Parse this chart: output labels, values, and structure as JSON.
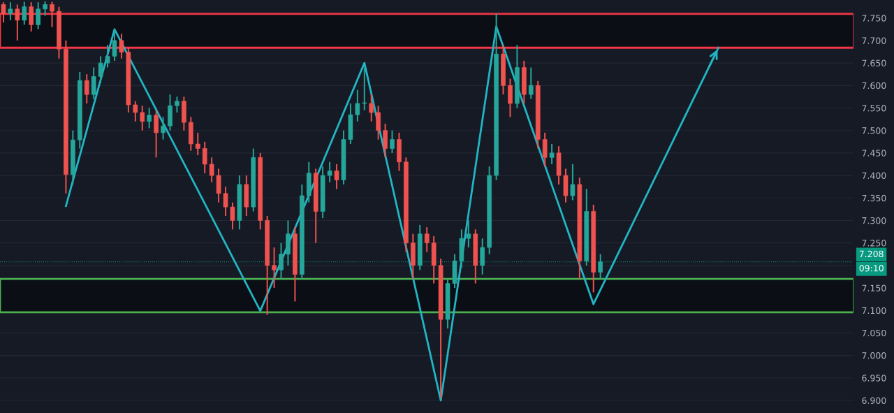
{
  "chart_data": {
    "type": "candlestick",
    "categories": [
      null,
      null,
      null,
      null,
      null,
      null,
      null,
      null,
      null,
      null,
      null,
      null,
      null,
      null,
      null,
      null,
      null,
      null,
      null,
      null,
      null,
      null,
      null,
      null,
      null,
      null,
      null,
      null,
      null,
      null,
      null,
      null,
      null,
      null,
      null,
      null,
      null,
      null,
      null,
      null,
      null,
      null,
      null,
      null,
      null,
      null,
      null,
      null,
      null,
      null,
      null,
      null,
      null,
      null,
      null,
      null,
      null,
      null,
      null,
      null,
      null,
      null,
      null,
      null,
      null,
      null,
      null,
      null,
      null,
      null,
      null,
      null,
      null,
      null,
      null,
      null,
      null,
      null,
      null,
      null,
      null,
      null,
      null,
      null,
      null,
      null,
      null,
      null,
      null,
      null,
      null,
      null,
      null,
      null,
      null,
      null,
      null,
      null,
      null,
      null,
      null,
      null,
      null,
      null,
      null,
      null,
      null,
      null,
      null,
      null,
      null,
      null,
      null,
      null,
      null,
      null,
      null,
      null,
      null,
      null,
      null,
      null,
      null
    ],
    "ohlc": [
      [
        7.78,
        7.785,
        7.74,
        7.76
      ],
      [
        7.76,
        7.785,
        7.745,
        7.77
      ],
      [
        7.77,
        7.78,
        7.7,
        7.745
      ],
      [
        7.745,
        7.786,
        7.735,
        7.775
      ],
      [
        7.775,
        7.785,
        7.72,
        7.735
      ],
      [
        7.735,
        7.785,
        7.725,
        7.77
      ],
      [
        7.77,
        7.787,
        7.755,
        7.78
      ],
      [
        7.78,
        7.786,
        7.73,
        7.765
      ],
      [
        7.765,
        7.775,
        7.66,
        7.681
      ],
      [
        7.681,
        7.7,
        7.36,
        7.402
      ],
      [
        7.402,
        7.5,
        7.38,
        7.479
      ],
      [
        7.479,
        7.63,
        7.46,
        7.611
      ],
      [
        7.611,
        7.625,
        7.56,
        7.58
      ],
      [
        7.58,
        7.64,
        7.57,
        7.62
      ],
      [
        7.62,
        7.665,
        7.605,
        7.65
      ],
      [
        7.65,
        7.69,
        7.64,
        7.665
      ],
      [
        7.665,
        7.725,
        7.655,
        7.7
      ],
      [
        7.7,
        7.715,
        7.66,
        7.674
      ],
      [
        7.674,
        7.685,
        7.54,
        7.557
      ],
      [
        7.557,
        7.565,
        7.52,
        7.54
      ],
      [
        7.54,
        7.555,
        7.5,
        7.52
      ],
      [
        7.52,
        7.55,
        7.505,
        7.534
      ],
      [
        7.534,
        7.545,
        7.44,
        7.495
      ],
      [
        7.495,
        7.53,
        7.48,
        7.51
      ],
      [
        7.51,
        7.58,
        7.5,
        7.555
      ],
      [
        7.555,
        7.575,
        7.54,
        7.565
      ],
      [
        7.565,
        7.575,
        7.5,
        7.518
      ],
      [
        7.518,
        7.53,
        7.455,
        7.47
      ],
      [
        7.47,
        7.495,
        7.445,
        7.46
      ],
      [
        7.46,
        7.475,
        7.405,
        7.425
      ],
      [
        7.425,
        7.44,
        7.385,
        7.4
      ],
      [
        7.4,
        7.415,
        7.34,
        7.36
      ],
      [
        7.36,
        7.375,
        7.31,
        7.33
      ],
      [
        7.33,
        7.34,
        7.28,
        7.3
      ],
      [
        7.3,
        7.4,
        7.28,
        7.38
      ],
      [
        7.38,
        7.4,
        7.31,
        7.33
      ],
      [
        7.33,
        7.46,
        7.32,
        7.44
      ],
      [
        7.44,
        7.45,
        7.28,
        7.3
      ],
      [
        7.3,
        7.31,
        7.09,
        7.2
      ],
      [
        7.2,
        7.24,
        7.15,
        7.19
      ],
      [
        7.19,
        7.25,
        7.17,
        7.225
      ],
      [
        7.225,
        7.3,
        7.2,
        7.27
      ],
      [
        7.27,
        7.285,
        7.12,
        7.18
      ],
      [
        7.18,
        7.38,
        7.17,
        7.355
      ],
      [
        7.355,
        7.43,
        7.34,
        7.405
      ],
      [
        7.405,
        7.415,
        7.25,
        7.32
      ],
      [
        7.32,
        7.42,
        7.305,
        7.4
      ],
      [
        7.4,
        7.43,
        7.385,
        7.41
      ],
      [
        7.41,
        7.425,
        7.37,
        7.39
      ],
      [
        7.39,
        7.5,
        7.38,
        7.48
      ],
      [
        7.48,
        7.56,
        7.47,
        7.535
      ],
      [
        7.535,
        7.59,
        7.52,
        7.56
      ],
      [
        7.56,
        7.64,
        7.545,
        7.56
      ],
      [
        7.56,
        7.58,
        7.52,
        7.54
      ],
      [
        7.54,
        7.555,
        7.48,
        7.5
      ],
      [
        7.5,
        7.515,
        7.44,
        7.46
      ],
      [
        7.46,
        7.5,
        7.45,
        7.48
      ],
      [
        7.48,
        7.495,
        7.41,
        7.43
      ],
      [
        7.43,
        7.44,
        7.23,
        7.25
      ],
      [
        7.25,
        7.27,
        7.17,
        7.2
      ],
      [
        7.2,
        7.29,
        7.19,
        7.27
      ],
      [
        7.27,
        7.285,
        7.23,
        7.25
      ],
      [
        7.25,
        7.265,
        7.16,
        7.2
      ],
      [
        7.2,
        7.215,
        6.905,
        7.08
      ],
      [
        7.08,
        7.17,
        7.06,
        7.16
      ],
      [
        7.16,
        7.225,
        7.15,
        7.21
      ],
      [
        7.21,
        7.28,
        7.195,
        7.26
      ],
      [
        7.26,
        7.3,
        7.24,
        7.27
      ],
      [
        7.27,
        7.28,
        7.16,
        7.2
      ],
      [
        7.2,
        7.26,
        7.18,
        7.24
      ],
      [
        7.24,
        7.42,
        7.225,
        7.4
      ],
      [
        7.4,
        7.76,
        7.39,
        7.67
      ],
      [
        7.67,
        7.69,
        7.58,
        7.6
      ],
      [
        7.6,
        7.615,
        7.53,
        7.56
      ],
      [
        7.56,
        7.69,
        7.55,
        7.64
      ],
      [
        7.64,
        7.655,
        7.56,
        7.58
      ],
      [
        7.58,
        7.64,
        7.57,
        7.6
      ],
      [
        7.6,
        7.61,
        7.46,
        7.48
      ],
      [
        7.48,
        7.495,
        7.42,
        7.44
      ],
      [
        7.44,
        7.47,
        7.425,
        7.45
      ],
      [
        7.45,
        7.465,
        7.38,
        7.4
      ],
      [
        7.4,
        7.415,
        7.34,
        7.355
      ],
      [
        7.355,
        7.425,
        7.345,
        7.38
      ],
      [
        7.38,
        7.395,
        7.17,
        7.21
      ],
      [
        7.21,
        7.37,
        7.2,
        7.32
      ],
      [
        7.32,
        7.335,
        7.14,
        7.185
      ],
      [
        7.185,
        7.225,
        7.17,
        7.208
      ],
      null,
      null,
      null,
      null,
      null,
      null,
      null,
      null,
      null,
      null,
      null,
      null,
      null,
      null,
      null,
      null,
      null,
      null,
      null,
      null,
      null,
      null,
      null,
      null,
      null,
      null,
      null,
      null,
      null,
      null,
      null,
      null,
      null,
      null,
      null,
      null
    ],
    "series": [
      {
        "type": "line",
        "color": "#22b5c4",
        "values": [
          null,
          null,
          null,
          null,
          null,
          null,
          null,
          null,
          null,
          7.332,
          null,
          null,
          null,
          null,
          null,
          null,
          7.725,
          null,
          null,
          null,
          null,
          null,
          null,
          null,
          null,
          null,
          null,
          null,
          null,
          null,
          null,
          null,
          null,
          null,
          null,
          null,
          null,
          7.099,
          null,
          null,
          null,
          null,
          null,
          null,
          null,
          null,
          null,
          null,
          null,
          null,
          null,
          null,
          7.65,
          null,
          null,
          null,
          null,
          null,
          null,
          null,
          null,
          null,
          null,
          6.9,
          null,
          null,
          null,
          null,
          null,
          null,
          null,
          7.731,
          null,
          null,
          null,
          null,
          null,
          null,
          null,
          null,
          null,
          null,
          null,
          null,
          null,
          7.114,
          null,
          null,
          null,
          null,
          null,
          null,
          null,
          null,
          null,
          null,
          null,
          null,
          null,
          null,
          null,
          null,
          null,
          7.684,
          null,
          null,
          null,
          null,
          null,
          null,
          null,
          null,
          null,
          null,
          null,
          null,
          null,
          null,
          null,
          null,
          null,
          null,
          null
        ]
      }
    ],
    "bands": [
      {
        "axis": "y",
        "from": 7.684,
        "to": 7.759,
        "color": "#f23645"
      },
      {
        "axis": "y",
        "from": 7.096,
        "to": 7.17,
        "color": "#4caf50"
      }
    ],
    "ref_lines": [
      {
        "axis": "y",
        "value": 7.208,
        "label": "7.208",
        "color": "#089981",
        "line_style": "dotted"
      }
    ],
    "annotations": [
      "09:10"
    ],
    "ylim": [
      6.872,
      7.79
    ],
    "yticks": [
      {
        "value": 6.9,
        "label": "6.900"
      },
      {
        "value": 6.95,
        "label": "6.950"
      },
      {
        "value": 7.0,
        "label": "7.000"
      },
      {
        "value": 7.05,
        "label": "7.050"
      },
      {
        "value": 7.1,
        "label": "7.100"
      },
      {
        "value": 7.15,
        "label": "7.150"
      },
      {
        "value": 7.2,
        "label": null
      },
      {
        "value": 7.25,
        "label": "7.250"
      },
      {
        "value": 7.3,
        "label": "7.300"
      },
      {
        "value": 7.35,
        "label": "7.350"
      },
      {
        "value": 7.4,
        "label": "7.400"
      },
      {
        "value": 7.45,
        "label": "7.450"
      },
      {
        "value": 7.5,
        "label": "7.500"
      },
      {
        "value": 7.55,
        "label": "7.550"
      },
      {
        "value": 7.6,
        "label": "7.600"
      },
      {
        "value": 7.65,
        "label": "7.650"
      },
      {
        "value": 7.7,
        "label": "7.700"
      },
      {
        "value": 7.75,
        "label": "7.750"
      }
    ],
    "tick_labels": "y",
    "grid": "y",
    "marker": "none",
    "line_style": "solid"
  }
}
